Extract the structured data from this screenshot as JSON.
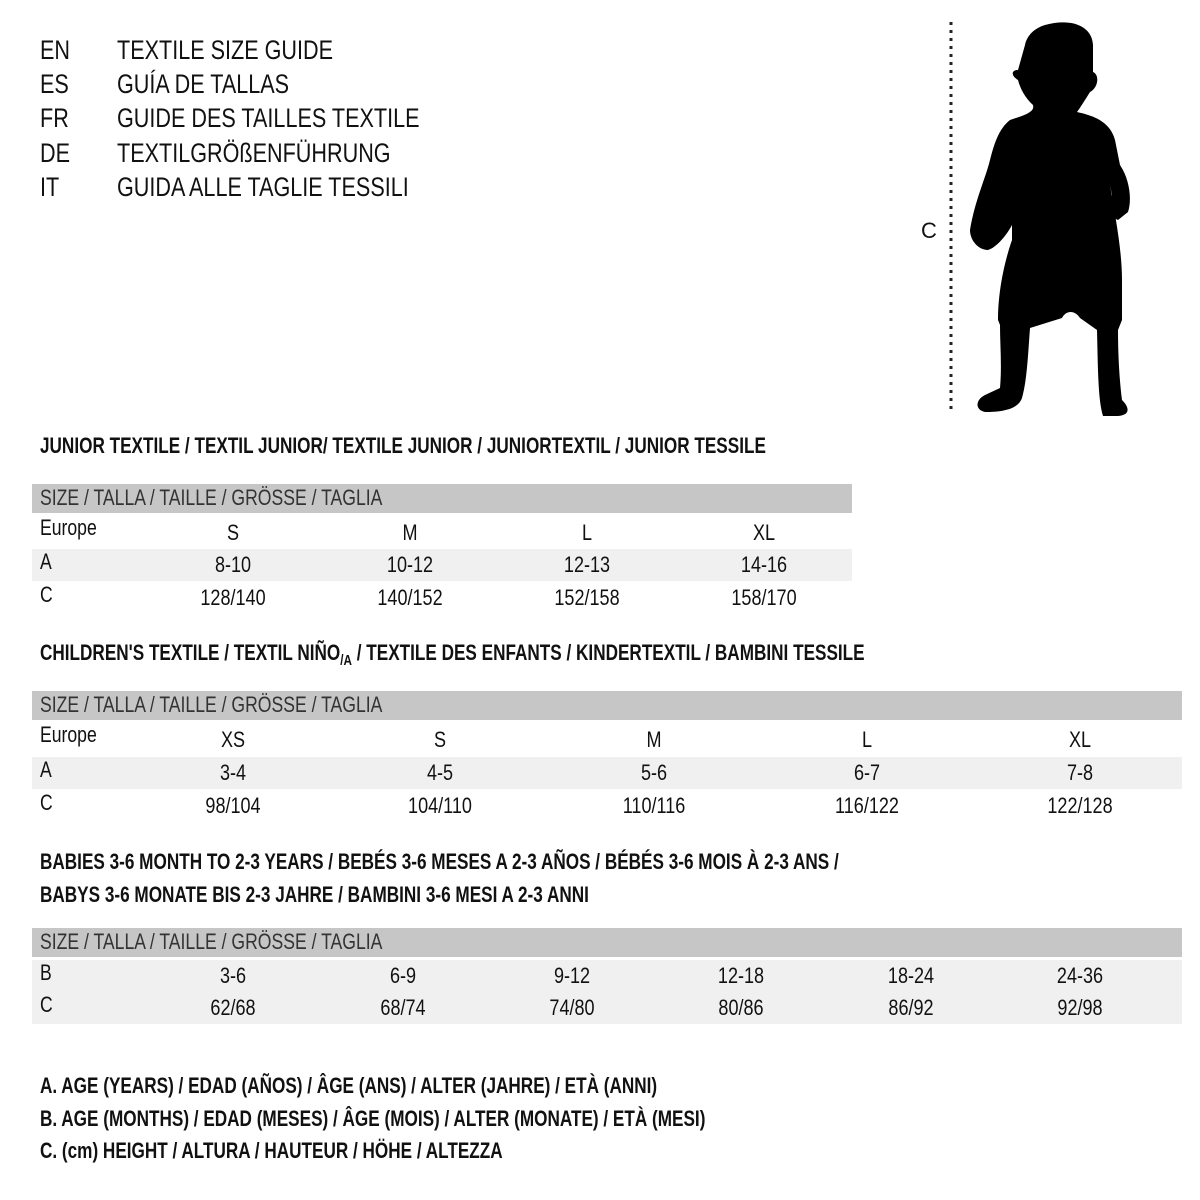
{
  "header": {
    "languages": [
      {
        "code": "EN",
        "title": "TEXTILE SIZE GUIDE"
      },
      {
        "code": "ES",
        "title": "GUÍA DE TALLAS"
      },
      {
        "code": "FR",
        "title": "GUIDE DES TAILLES TEXTILE"
      },
      {
        "code": "DE",
        "title": "TEXTILGRÖßENFÜHRUNG"
      },
      {
        "code": "IT",
        "title": "GUIDA ALLE TAGLIE TESSILI"
      }
    ]
  },
  "figure": {
    "measure_label": "C",
    "icon": "child-silhouette-icon"
  },
  "junior": {
    "title": "JUNIOR TEXTILE / TEXTIL JUNIOR/ TEXTILE JUNIOR / JUNIORTEXTIL / JUNIOR TESSILE",
    "header": "SIZE / TALLA / TAILLE / GRÖSSE / TAGLIA",
    "rows": [
      {
        "label": "Europe",
        "values": [
          "S",
          "M",
          "L",
          "XL"
        ]
      },
      {
        "label": "A",
        "values": [
          "8-10",
          "10-12",
          "12-13",
          "14-16"
        ]
      },
      {
        "label": "C",
        "values": [
          "128/140",
          "140/152",
          "152/158",
          "158/170"
        ]
      }
    ]
  },
  "children": {
    "title_part1": "CHILDREN'S TEXTILE / TEXTIL NIÑO",
    "title_sub": "/A",
    "title_part2": " / TEXTILE DES ENFANTS / KINDERTEXTIL / BAMBINI TESSILE",
    "header": "SIZE / TALLA / TAILLE / GRÖSSE / TAGLIA",
    "rows": [
      {
        "label": "Europe",
        "values": [
          "XS",
          "S",
          "M",
          "L",
          "XL"
        ]
      },
      {
        "label": "A",
        "values": [
          "3-4",
          "4-5",
          "5-6",
          "6-7",
          "7-8"
        ]
      },
      {
        "label": "C",
        "values": [
          "98/104",
          "104/110",
          "110/116",
          "116/122",
          "122/128"
        ]
      }
    ]
  },
  "babies": {
    "title_line1": "BABIES 3-6 MONTH TO 2-3 YEARS / BEBÉS 3-6 MESES A 2-3 AÑOS / BÉBÉS 3-6 MOIS À 2-3 ANS /",
    "title_line2": "BABYS 3-6 MONATE BIS 2-3 JAHRE / BAMBINI 3-6 MESI A 2-3 ANNI",
    "header": "SIZE / TALLA / TAILLE / GRÖSSE / TAGLIA",
    "rows": [
      {
        "label": "B",
        "values": [
          "3-6",
          "6-9",
          "9-12",
          "12-18",
          "18-24",
          "24-36"
        ]
      },
      {
        "label": "C",
        "values": [
          "62/68",
          "68/74",
          "74/80",
          "80/86",
          "86/92",
          "92/98"
        ]
      }
    ]
  },
  "legend": [
    "A. AGE (YEARS) / EDAD (AÑOS) / ÂGE (ANS) / ALTER (JAHRE) / ETÀ (ANNI)",
    "B. AGE (MONTHS) / EDAD (MESES) / ÂGE (MOIS) / ALTER (MONATE) / ETÀ (MESI)",
    "C. (cm) HEIGHT / ALTURA / HAUTEUR / HÖHE / ALTEZZA"
  ],
  "colors": {
    "header_band": "#c6c6c6",
    "row_band": "#f0f0f0",
    "text": "#111111"
  }
}
